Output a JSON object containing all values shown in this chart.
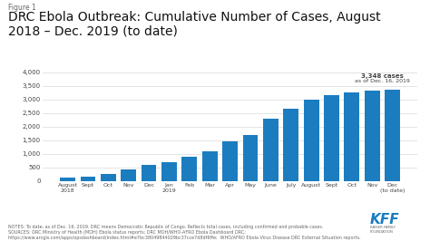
{
  "title_small": "Figure 1",
  "title_line1": "DRC Ebola Outbreak: Cumulative Number of Cases, August",
  "title_line2": "2018 – Dec. 2019 (to date)",
  "categories": [
    "August\n2018",
    "Sept",
    "Oct",
    "Nov",
    "Dec",
    "Jan\n2019",
    "Feb",
    "Mar",
    "Apr",
    "May",
    "June",
    "July",
    "August",
    "Sept",
    "Oct",
    "Nov",
    "Dec\n(to date)"
  ],
  "values": [
    120,
    160,
    240,
    420,
    590,
    700,
    880,
    1075,
    1450,
    1680,
    2280,
    2650,
    3000,
    3150,
    3250,
    3310,
    3348
  ],
  "bar_color": "#1b7dc0",
  "annotation_text_bold": "3,348 cases",
  "annotation_text_normal": "as of Dec. 16, 2019",
  "annotation_bar_index": 16,
  "ylim": [
    0,
    4000
  ],
  "yticks": [
    0,
    500,
    1000,
    1500,
    2000,
    2500,
    3000,
    3500,
    4000
  ],
  "background_color": "#ffffff",
  "notes_line1": "NOTES: To date, as of Dec. 16, 2019. DRC means Democratic Republic of Congo. Reflects total cases, including confirmed and probable cases.",
  "notes_line2": "SOURCES: DRC Ministry of Health (MOH) Ebola status reports; DRC MOH/WHO-AFRO Ebola Dashboard DRC;",
  "notes_line3": "https://www.arcgis.com/apps/opsdashboard/index.html#e7bc38049844029bc37cce7d8df6ffe;  WHO/AFRO Ebola Virus Disease DRC External Situation reports.",
  "grid_color": "#d9d9d9",
  "text_color": "#444444",
  "notes_color": "#666666",
  "title_small_color": "#666666",
  "kff_color": "#1b7dc0"
}
